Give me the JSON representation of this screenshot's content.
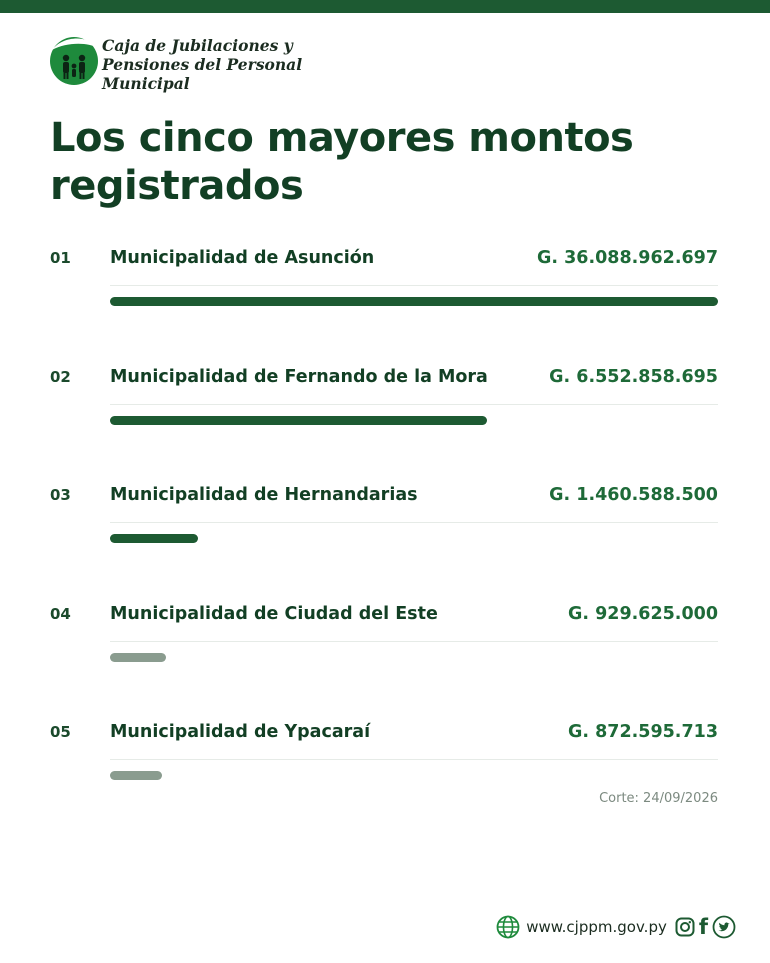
{
  "org": {
    "line1": "Caja de Jubilaciones y",
    "line2": "Pensiones del Personal",
    "line3": "Municipal"
  },
  "heading": {
    "line1": "Los cinco mayores montos",
    "line2": "registrados"
  },
  "chart_data": {
    "type": "bar",
    "orientation": "horizontal",
    "title": "Los cinco mayores montos registrados",
    "categories": [
      "Municipalidad de Asunción",
      "Municipalidad de Fernando de la Mora",
      "Municipalidad de Hernandarias",
      "Municipalidad de Ciudad del Este",
      "Municipalidad de Ypacaraí"
    ],
    "ranks": [
      "01",
      "02",
      "03",
      "04",
      "05"
    ],
    "amount_labels": [
      "G. 36.088.962.697",
      "G. 6.552.858.695",
      "G. 1.460.588.500",
      "G. 929.625.000",
      "G. 872.595.713"
    ],
    "values": [
      36088962697,
      6552858695,
      1460588500,
      929625000,
      872595713
    ],
    "bar_fractions": [
      1.0,
      0.62,
      0.145,
      0.092,
      0.085
    ],
    "bar_colors": [
      "#1d5a32",
      "#1d5a32",
      "#1d5a32",
      "#8a9c8f",
      "#8a9c8f"
    ],
    "grid": false,
    "legend": "none"
  },
  "cutoff": "Corte: 24/09/2026",
  "footer": {
    "url": "www.cjppm.gov.py",
    "icons": [
      "globe-icon",
      "instagram-icon",
      "facebook-icon",
      "twitter-icon"
    ]
  },
  "colors": {
    "brand_dark": "#1d5a32",
    "amount_green": "#1e6a38",
    "muted_bar": "#8a9c8f"
  }
}
